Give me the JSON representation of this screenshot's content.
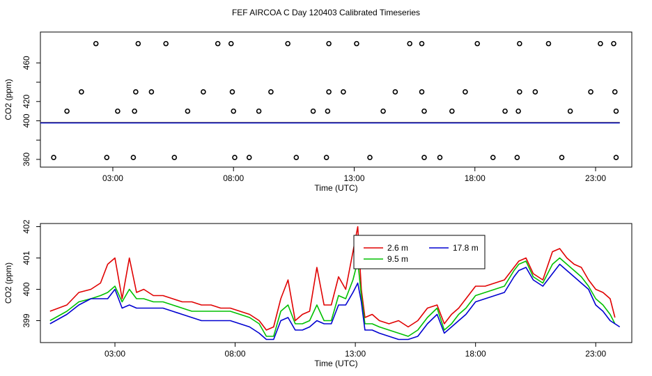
{
  "title": "FEF AIRCOA C  Day 120403  Calibrated Timeseries",
  "chart_data": [
    {
      "type": "scatter",
      "xlabel": "Time (UTC)",
      "ylabel": "CO2 (ppm)",
      "xlim": [
        0,
        24.5
      ],
      "ylim": [
        352,
        492
      ],
      "xticks": [
        3,
        8,
        13,
        18,
        23
      ],
      "xtick_labels": [
        "03:00",
        "08:00",
        "13:00",
        "18:00",
        "23:00"
      ],
      "yticks": [
        360,
        380,
        400,
        420,
        440,
        460
      ],
      "ytick_labels": [
        "360",
        "",
        "400",
        "420",
        "",
        "460"
      ],
      "grid": false,
      "points": [
        [
          2.3,
          480
        ],
        [
          4.05,
          480
        ],
        [
          5.2,
          480
        ],
        [
          7.35,
          480
        ],
        [
          7.9,
          480
        ],
        [
          10.25,
          480
        ],
        [
          11.95,
          480
        ],
        [
          13.1,
          480
        ],
        [
          15.3,
          480
        ],
        [
          15.8,
          480
        ],
        [
          18.1,
          480
        ],
        [
          19.85,
          480
        ],
        [
          21.05,
          480
        ],
        [
          23.2,
          480
        ],
        [
          23.75,
          480
        ],
        [
          1.7,
          430
        ],
        [
          3.95,
          430
        ],
        [
          4.6,
          430
        ],
        [
          6.75,
          430
        ],
        [
          7.95,
          430
        ],
        [
          9.55,
          430
        ],
        [
          11.95,
          430
        ],
        [
          12.55,
          430
        ],
        [
          14.7,
          430
        ],
        [
          15.8,
          430
        ],
        [
          17.6,
          430
        ],
        [
          19.85,
          430
        ],
        [
          20.5,
          430
        ],
        [
          22.8,
          430
        ],
        [
          23.8,
          430
        ],
        [
          1.1,
          410
        ],
        [
          3.2,
          410
        ],
        [
          3.9,
          410
        ],
        [
          6.1,
          410
        ],
        [
          8.0,
          410
        ],
        [
          9.05,
          410
        ],
        [
          11.3,
          410
        ],
        [
          11.9,
          410
        ],
        [
          14.2,
          410
        ],
        [
          15.9,
          410
        ],
        [
          17.05,
          410
        ],
        [
          19.25,
          410
        ],
        [
          19.8,
          410
        ],
        [
          21.95,
          410
        ],
        [
          23.85,
          410
        ],
        [
          0.55,
          362
        ],
        [
          2.75,
          362
        ],
        [
          3.85,
          362
        ],
        [
          5.55,
          362
        ],
        [
          8.05,
          362
        ],
        [
          8.65,
          362
        ],
        [
          10.6,
          362
        ],
        [
          11.85,
          362
        ],
        [
          13.65,
          362
        ],
        [
          15.9,
          362
        ],
        [
          16.55,
          362
        ],
        [
          18.75,
          362
        ],
        [
          19.75,
          362
        ],
        [
          21.6,
          362
        ],
        [
          23.85,
          362
        ]
      ],
      "series": [
        {
          "name": "2.6 m",
          "color": "#e00000",
          "x": [
            0,
            24
          ],
          "values": [
            398.2,
            398.2
          ]
        },
        {
          "name": "9.5 m",
          "color": "#00c000",
          "x": [
            0,
            24
          ],
          "values": [
            398.0,
            398.0
          ]
        },
        {
          "name": "17.8 m",
          "color": "#0000d0",
          "x": [
            0,
            24
          ],
          "values": [
            397.8,
            397.8
          ]
        }
      ]
    },
    {
      "type": "line",
      "xlabel": "Time (UTC)",
      "ylabel": "CO2 (ppm)",
      "xlim": [
        -0.1,
        24.5
      ],
      "ylim": [
        398.3,
        402.1
      ],
      "xticks": [
        3,
        8,
        13,
        18,
        23
      ],
      "xtick_labels": [
        "03:00",
        "08:00",
        "13:00",
        "18:00",
        "23:00"
      ],
      "yticks": [
        399,
        400,
        401,
        402
      ],
      "ytick_labels": [
        "399",
        "400",
        "401",
        "402"
      ],
      "grid": false,
      "legend": "top-center",
      "series": [
        {
          "name": "2.6 m",
          "color": "#e00000",
          "x": [
            0.3,
            1.0,
            1.5,
            2.0,
            2.4,
            2.7,
            3.0,
            3.3,
            3.6,
            3.9,
            4.2,
            4.6,
            5.0,
            5.4,
            5.8,
            6.2,
            6.6,
            7.0,
            7.4,
            7.8,
            8.2,
            8.6,
            9.0,
            9.3,
            9.6,
            9.9,
            10.2,
            10.5,
            10.8,
            11.1,
            11.4,
            11.7,
            12.0,
            12.3,
            12.6,
            12.9,
            13.1,
            13.25,
            13.4,
            13.7,
            14.0,
            14.4,
            14.8,
            15.2,
            15.6,
            16.0,
            16.4,
            16.7,
            17.0,
            17.3,
            17.6,
            18.0,
            18.4,
            18.8,
            19.2,
            19.6,
            19.8,
            20.1,
            20.4,
            20.8,
            21.2,
            21.5,
            21.8,
            22.1,
            22.4,
            22.7,
            23.0,
            23.3,
            23.6,
            23.8
          ],
          "values": [
            399.3,
            399.5,
            399.9,
            400.0,
            400.2,
            400.8,
            401.0,
            399.7,
            401.0,
            399.9,
            400.0,
            399.8,
            399.8,
            399.7,
            399.6,
            399.6,
            399.5,
            399.5,
            399.4,
            399.4,
            399.3,
            399.2,
            399.0,
            398.7,
            398.8,
            399.7,
            400.3,
            399.0,
            399.2,
            399.3,
            400.7,
            399.5,
            399.5,
            400.4,
            400.0,
            401.2,
            402.0,
            400.0,
            399.1,
            399.2,
            399.0,
            398.9,
            399.0,
            398.8,
            399.0,
            399.4,
            399.5,
            398.9,
            399.2,
            399.4,
            399.7,
            400.1,
            400.1,
            400.2,
            400.3,
            400.7,
            400.9,
            401.0,
            400.5,
            400.3,
            401.2,
            401.3,
            401.0,
            400.8,
            400.7,
            400.3,
            400.0,
            399.9,
            399.7,
            399.1
          ]
        },
        {
          "name": "9.5 m",
          "color": "#00c000",
          "x": [
            0.3,
            1.0,
            1.5,
            2.0,
            2.4,
            2.7,
            3.0,
            3.3,
            3.6,
            3.9,
            4.2,
            4.6,
            5.0,
            5.4,
            5.8,
            6.2,
            6.6,
            7.0,
            7.4,
            7.8,
            8.2,
            8.6,
            9.0,
            9.3,
            9.6,
            9.9,
            10.2,
            10.5,
            10.8,
            11.1,
            11.4,
            11.7,
            12.0,
            12.3,
            12.6,
            12.9,
            13.1,
            13.25,
            13.4,
            13.7,
            14.0,
            14.4,
            14.8,
            15.2,
            15.6,
            16.0,
            16.4,
            16.7,
            17.0,
            17.3,
            17.6,
            18.0,
            18.4,
            18.8,
            19.2,
            19.6,
            19.8,
            20.1,
            20.4,
            20.8,
            21.2,
            21.5,
            21.8,
            22.1,
            22.4,
            22.7,
            23.0,
            23.3,
            23.6,
            23.8
          ],
          "values": [
            399.0,
            399.3,
            399.6,
            399.7,
            399.8,
            399.9,
            400.1,
            399.6,
            400.0,
            399.7,
            399.7,
            399.6,
            399.6,
            399.5,
            399.4,
            399.3,
            399.3,
            399.3,
            399.3,
            399.3,
            399.2,
            399.1,
            398.9,
            398.5,
            398.5,
            399.3,
            399.5,
            398.9,
            398.9,
            399.0,
            399.5,
            399.0,
            399.0,
            399.8,
            399.7,
            400.3,
            400.9,
            399.8,
            398.9,
            398.9,
            398.8,
            398.7,
            398.6,
            398.5,
            398.7,
            399.1,
            399.4,
            398.7,
            398.9,
            399.2,
            399.4,
            399.8,
            399.9,
            400.0,
            400.1,
            400.6,
            400.8,
            400.9,
            400.4,
            400.2,
            400.8,
            401.0,
            400.8,
            400.6,
            400.4,
            400.1,
            399.7,
            399.5,
            399.2,
            398.9
          ]
        },
        {
          "name": "17.8 m",
          "color": "#0000d0",
          "x": [
            0.3,
            1.0,
            1.5,
            2.0,
            2.4,
            2.7,
            3.0,
            3.3,
            3.6,
            3.9,
            4.2,
            4.6,
            5.0,
            5.4,
            5.8,
            6.2,
            6.6,
            7.0,
            7.4,
            7.8,
            8.2,
            8.6,
            9.0,
            9.3,
            9.6,
            9.9,
            10.2,
            10.5,
            10.8,
            11.1,
            11.4,
            11.7,
            12.0,
            12.3,
            12.6,
            12.9,
            13.1,
            13.25,
            13.4,
            13.7,
            14.0,
            14.4,
            14.8,
            15.2,
            15.6,
            16.0,
            16.4,
            16.7,
            17.0,
            17.3,
            17.6,
            18.0,
            18.4,
            18.8,
            19.2,
            19.6,
            19.8,
            20.1,
            20.4,
            20.8,
            21.2,
            21.5,
            21.8,
            22.1,
            22.4,
            22.7,
            23.0,
            23.3,
            23.6,
            24.0
          ],
          "values": [
            398.9,
            399.2,
            399.5,
            399.7,
            399.7,
            399.7,
            400.0,
            399.4,
            399.5,
            399.4,
            399.4,
            399.4,
            399.4,
            399.3,
            399.2,
            399.1,
            399.0,
            399.0,
            399.0,
            399.0,
            398.9,
            398.8,
            398.6,
            398.4,
            398.4,
            399.0,
            399.1,
            398.7,
            398.7,
            398.8,
            399.0,
            398.9,
            398.9,
            399.5,
            399.5,
            399.9,
            400.2,
            399.6,
            398.7,
            398.7,
            398.6,
            398.5,
            398.4,
            398.4,
            398.5,
            398.9,
            399.2,
            398.6,
            398.8,
            399.0,
            399.2,
            399.6,
            399.7,
            399.8,
            399.9,
            400.4,
            400.6,
            400.7,
            400.3,
            400.1,
            400.5,
            400.8,
            400.6,
            400.4,
            400.2,
            400.0,
            399.5,
            399.3,
            399.0,
            398.8
          ]
        }
      ]
    }
  ]
}
